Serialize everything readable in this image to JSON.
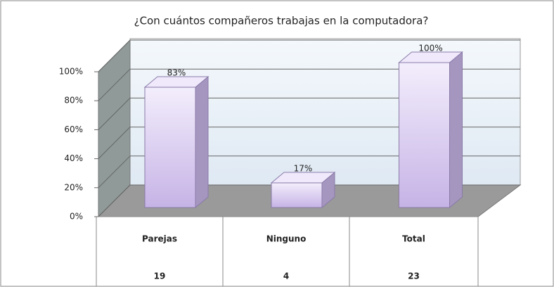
{
  "chart_data": {
    "type": "bar3d",
    "title": "¿Con cuántos compañeros trabajas en la computadora?",
    "categories": [
      "Parejas",
      "Ninguno",
      "Total"
    ],
    "values": [
      83,
      17,
      100
    ],
    "value_labels": [
      "83%",
      "17%",
      "100%"
    ],
    "counts": [
      19,
      4,
      23
    ],
    "color": "#e0d4f4",
    "ylim": [
      0,
      100
    ],
    "yticks": [
      {
        "value": 0,
        "label": "0%"
      },
      {
        "value": 20,
        "label": "20%"
      },
      {
        "value": 40,
        "label": "40%"
      },
      {
        "value": 60,
        "label": "60%"
      },
      {
        "value": 80,
        "label": "80%"
      },
      {
        "value": 100,
        "label": "100%"
      }
    ],
    "grid": true
  }
}
